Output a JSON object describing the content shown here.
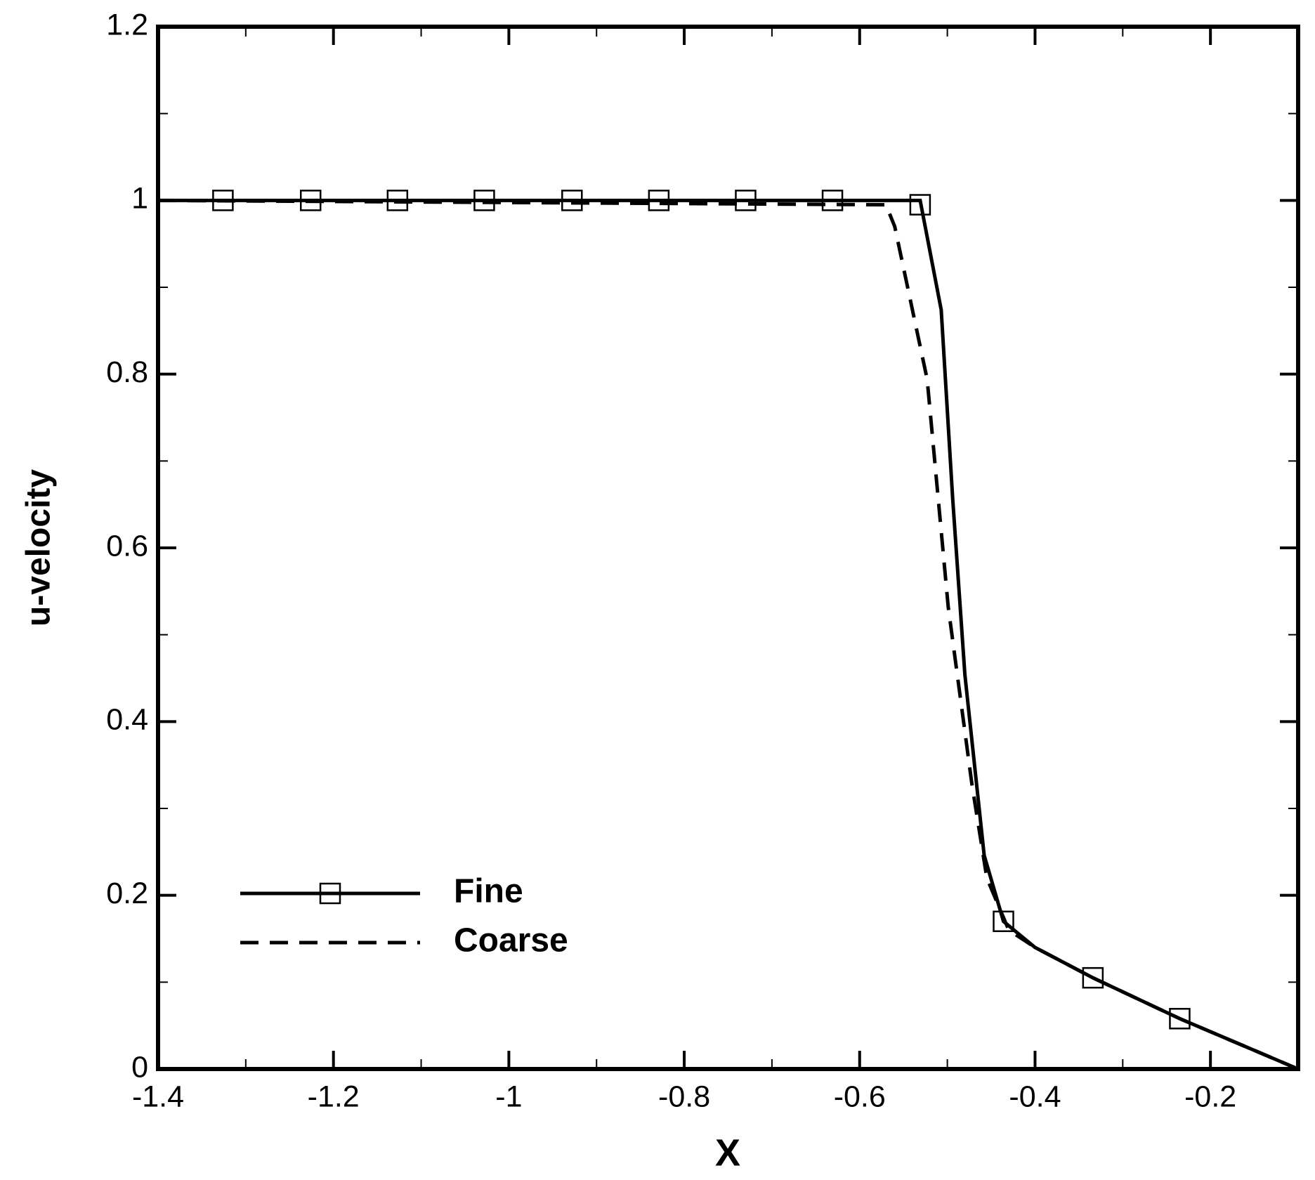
{
  "chart_data": {
    "type": "line",
    "xlabel": "X",
    "ylabel": "u-velocity",
    "xlim": [
      -1.4,
      -0.1
    ],
    "ylim": [
      0,
      1.2
    ],
    "xticks": [
      -1.4,
      -1.2,
      -1,
      -0.8,
      -0.6,
      -0.4,
      -0.2
    ],
    "yticks": [
      0,
      0.2,
      0.4,
      0.6,
      0.8,
      1,
      1.2
    ],
    "xminorticks": [
      -1.3,
      -1.1,
      -0.9,
      -0.7,
      -0.5,
      -0.3
    ],
    "yminorticks": [
      0.1,
      0.3,
      0.5,
      0.7,
      0.9,
      1.1
    ],
    "legend": "lower left",
    "series": [
      {
        "name": "Fine",
        "color": "#000000",
        "dash": "solid",
        "x": [
          -1.4,
          -0.531,
          -0.507,
          -0.494,
          -0.48,
          -0.458,
          -0.436,
          -0.4,
          -0.334,
          -0.235,
          -0.1
        ],
        "values": [
          1,
          1,
          0.874,
          0.658,
          0.454,
          0.246,
          0.17,
          0.14,
          0.105,
          0.058,
          0
        ],
        "markers": {
          "x": [
            -1.326,
            -1.226,
            -1.127,
            -1.028,
            -0.928,
            -0.829,
            -0.73,
            -0.631,
            -0.531,
            -0.436,
            -0.334,
            -0.235
          ],
          "values": [
            1,
            1,
            1,
            1,
            1,
            1,
            1,
            1,
            0.995,
            0.17,
            0.105,
            0.058
          ]
        }
      },
      {
        "name": "Coarse",
        "color": "#000000",
        "dash": "dashed",
        "x": [
          -1.4,
          -0.57,
          -0.56,
          -0.523,
          -0.499,
          -0.472,
          -0.455,
          -0.43,
          -0.4,
          -0.334,
          -0.235,
          -0.1
        ],
        "values": [
          1,
          0.995,
          0.97,
          0.794,
          0.532,
          0.328,
          0.22,
          0.16,
          0.14,
          0.105,
          0.058,
          0
        ]
      }
    ]
  }
}
